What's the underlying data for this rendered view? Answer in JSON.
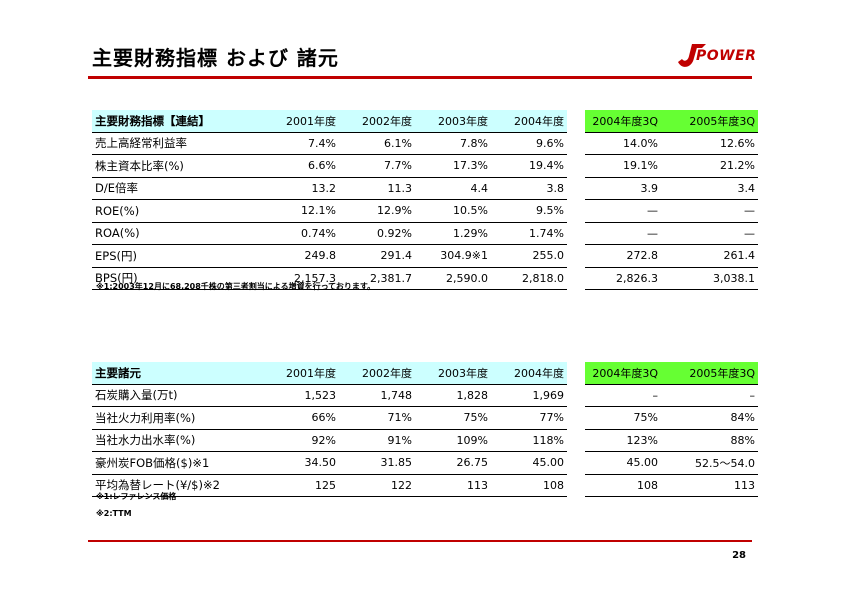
{
  "title": "主要財務指標 および 諸元",
  "logo_text": "POWER",
  "page_number": "28",
  "colors": {
    "accent_red": "#c00000",
    "header_cyan": "#ccffff",
    "header_green": "#66ff33"
  },
  "table1": {
    "header": [
      "主要財務指標【連結】",
      "2001年度",
      "2002年度",
      "2003年度",
      "2004年度",
      "2004年度3Q",
      "2005年度3Q"
    ],
    "rows": [
      [
        "売上高経常利益率",
        "7.4%",
        "6.1%",
        "7.8%",
        "9.6%",
        "14.0%",
        "12.6%"
      ],
      [
        "株主資本比率(%)",
        "6.6%",
        "7.7%",
        "17.3%",
        "19.4%",
        "19.1%",
        "21.2%"
      ],
      [
        "D/E倍率",
        "13.2",
        "11.3",
        "4.4",
        "3.8",
        "3.9",
        "3.4"
      ],
      [
        "ROE(%)",
        "12.1%",
        "12.9%",
        "10.5%",
        "9.5%",
        "—",
        "—"
      ],
      [
        "ROA(%)",
        "0.74%",
        "0.92%",
        "1.29%",
        "1.74%",
        "—",
        "—"
      ],
      [
        "EPS(円)",
        "249.8",
        "291.4",
        "304.9※1",
        "255.0",
        "272.8",
        "261.4"
      ],
      [
        "BPS(円)",
        "2,157.3",
        "2,381.7",
        "2,590.0",
        "2,818.0",
        "2,826.3",
        "3,038.1"
      ]
    ],
    "notes": [
      "※1:2003年12月に68,208千株の第三者割当による増資を行っております。"
    ]
  },
  "table2": {
    "header": [
      "主要諸元",
      "2001年度",
      "2002年度",
      "2003年度",
      "2004年度",
      "2004年度3Q",
      "2005年度3Q"
    ],
    "rows": [
      [
        "石炭購入量(万t)",
        "1,523",
        "1,748",
        "1,828",
        "1,969",
        "–",
        "–"
      ],
      [
        "当社火力利用率(%)",
        "66%",
        "71%",
        "75%",
        "77%",
        "75%",
        "84%"
      ],
      [
        "当社水力出水率(%)",
        "92%",
        "91%",
        "109%",
        "118%",
        "123%",
        "88%"
      ],
      [
        "豪州炭FOB価格($)※1",
        "34.50",
        "31.85",
        "26.75",
        "45.00",
        "45.00",
        "52.5～54.0"
      ],
      [
        "平均為替レート(¥/$)※2",
        "125",
        "122",
        "113",
        "108",
        "108",
        "113"
      ]
    ],
    "notes": [
      "※1:レファレンス価格",
      "※2:TTM"
    ]
  }
}
